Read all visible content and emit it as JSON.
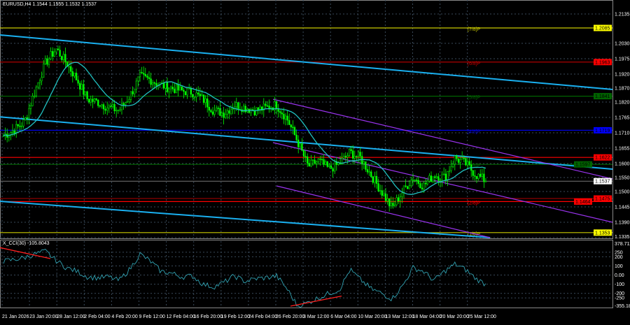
{
  "header": {
    "symbol_line": "EURUSD,H4  1.1544 1.1555 1.1532 1.1537"
  },
  "chart_data": {
    "type": "candlestick",
    "symbol": "EURUSD",
    "timeframe": "H4",
    "ohlc_last": {
      "open": 1.1544,
      "high": 1.1555,
      "low": 1.1532,
      "close": 1.1537
    },
    "ylim": [
      1.1335,
      1.2135
    ],
    "y_ticks": [
      "1.2135",
      "1.2030",
      "1.1975",
      "1.1920",
      "1.1870",
      "1.1820",
      "1.1765",
      "1.1710",
      "1.1655",
      "1.1600",
      "1.1550",
      "1.1500",
      "1.1445",
      "1.1390",
      "1.1335"
    ],
    "x_ticks": [
      "21 Jan 2026",
      "23 Jan 20:00",
      "28 Jan 12:00",
      "2 Feb 04:00",
      "4 Feb 20:00",
      "9 Feb 12:00",
      "12 Feb 04:00",
      "16 Feb 20:00",
      "19 Feb 12:00",
      "24 Feb 04:00",
      "26 Feb 20:00",
      "3 Mar 12:00",
      "6 Mar 04:00",
      "10 Mar 20:00",
      "13 Mar 12:00",
      "18 Mar 04:00",
      "20 Mar 20:00",
      "25 Mar 12:00"
    ],
    "close_approx": [
      1.17,
      1.172,
      1.175,
      1.186,
      1.196,
      1.201,
      1.196,
      1.19,
      1.183,
      1.182,
      1.18,
      1.179,
      1.184,
      1.191,
      1.19,
      1.188,
      1.187,
      1.186,
      1.1855,
      1.183,
      1.179,
      1.178,
      1.181,
      1.18,
      1.179,
      1.18,
      1.181,
      1.176,
      1.168,
      1.159,
      1.161,
      1.158,
      1.16,
      1.164,
      1.162,
      1.156,
      1.15,
      1.144,
      1.15,
      1.155,
      1.152,
      1.156,
      1.155,
      1.162,
      1.16,
      1.156,
      1.1537
    ],
    "levels": [
      {
        "label": "[7/8]P",
        "price": "1.2085",
        "color": "#c8c800",
        "tag_bg": "#ffff00",
        "tag_fg": "#000"
      },
      {
        "label": "[6/8]P",
        "price": "1.1963",
        "color": "#c00000",
        "tag_bg": "#ff0000",
        "tag_fg": "#000"
      },
      {
        "label": "[5/8]P",
        "price": "1.1841",
        "color": "#006400",
        "tag_bg": "#006400",
        "tag_fg": "#000"
      },
      {
        "label": "[4/8]P",
        "price": "1.1719",
        "color": "#0000e0",
        "tag_bg": "#0000ff",
        "tag_fg": "#000"
      },
      {
        "label": "",
        "price": "1.1622",
        "color": "#ff0000",
        "tag_bg": "#ff0000",
        "tag_fg": "#000"
      },
      {
        "label": "[3/8]P",
        "price": "1.1597",
        "color": "#006400",
        "tag_bg": "#006400",
        "tag_fg": "#000"
      },
      {
        "label": "",
        "price": "1.1475",
        "color": "#8b0000",
        "tag_bg": "#ff0000",
        "tag_fg": "#000"
      },
      {
        "label": "[2/8]P",
        "price": "1.1464",
        "color": "#ff0000",
        "tag_bg": "#ff0000",
        "tag_fg": "#000"
      },
      {
        "label": "[1/8]P",
        "price": "1.1353",
        "color": "#c8c800",
        "tag_bg": "#ffff00",
        "tag_fg": "#000"
      }
    ],
    "current_price": "1.1537",
    "colors": {
      "bull": "#00ff00",
      "bear": "#00ff00",
      "ma": "#20c0c0",
      "trend": "#1ab0f0",
      "channel": "#9933ee",
      "grid": "#3a4a5a"
    },
    "indicator": {
      "title": "X_CCI(30) -105.8043",
      "ylim": [
        -355.189,
        378.7116
      ],
      "y_ticks": [
        "378.7116",
        "250",
        "200",
        "100",
        "0.00",
        "-100",
        "-200",
        "-250",
        "-355.189"
      ],
      "values_approx": [
        150,
        170,
        190,
        230,
        260,
        160,
        80,
        40,
        -20,
        -30,
        -20,
        -60,
        60,
        230,
        150,
        40,
        20,
        -20,
        -10,
        -100,
        -130,
        -80,
        -10,
        -70,
        -40,
        -30,
        -10,
        -150,
        -340,
        -300,
        -250,
        -200,
        -160,
        60,
        -50,
        -150,
        -200,
        -260,
        -120,
        80,
        40,
        -60,
        40,
        120,
        60,
        -40,
        -106
      ],
      "color": "#30a0b0"
    }
  }
}
